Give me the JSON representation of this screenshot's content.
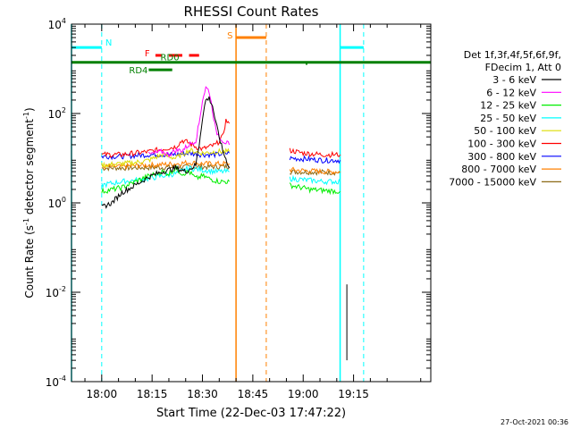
{
  "chart_data": {
    "type": "line",
    "title": "RHESSI Count Rates",
    "xlabel": "Start Time (22-Dec-03 17:47:22)",
    "ylabel_parts": [
      "Count Rate (s",
      "-1",
      " detector segment",
      "-1",
      ")"
    ],
    "y_scale": "log",
    "ylim": [
      0.0001,
      10000
    ],
    "y_ticks": [
      {
        "value": 0.0001,
        "base": "10",
        "exp": "-4"
      },
      {
        "value": 0.01,
        "base": "10",
        "exp": "-2"
      },
      {
        "value": 1,
        "base": "10",
        "exp": "0"
      },
      {
        "value": 100,
        "base": "10",
        "exp": "2"
      },
      {
        "value": 10000,
        "base": "10",
        "exp": "4"
      }
    ],
    "x_range_min": [
      -9,
      98
    ],
    "x_ticks": [
      {
        "label": "18:00",
        "min": 0
      },
      {
        "label": "18:15",
        "min": 15
      },
      {
        "label": "18:30",
        "min": 30
      },
      {
        "label": "18:45",
        "min": 45
      },
      {
        "label": "19:00",
        "min": 60
      },
      {
        "label": "19:15",
        "min": 75
      }
    ],
    "legend": {
      "title_lines": [
        "Det 1f,3f,4f,5f,6f,9f,",
        "FDecim 1, Att 0"
      ],
      "entries": [
        {
          "label": "3 - 6 keV",
          "color": "#000000"
        },
        {
          "label": "6 - 12 keV",
          "color": "#ff00ff"
        },
        {
          "label": "12 - 25 keV",
          "color": "#00ee00"
        },
        {
          "label": "25 - 50 keV",
          "color": "#00ffff"
        },
        {
          "label": "50 - 100 keV",
          "color": "#dddd00"
        },
        {
          "label": "100 - 300 keV",
          "color": "#ff0000"
        },
        {
          "label": "300 - 800 keV",
          "color": "#0000ff"
        },
        {
          "label": "800 - 7000 keV",
          "color": "#ff8000"
        },
        {
          "label": "7000 - 15000 keV",
          "color": "#8b6914"
        }
      ]
    },
    "series": [
      {
        "name": "3 - 6 keV",
        "color": "#000000",
        "segments": [
          [
            [
              0,
              0.8
            ],
            [
              3,
              1.0
            ],
            [
              6,
              1.7
            ],
            [
              10,
              2.5
            ],
            [
              14,
              3.8
            ],
            [
              18,
              5
            ],
            [
              22,
              6
            ],
            [
              25,
              5
            ],
            [
              28,
              7
            ],
            [
              29,
              20
            ],
            [
              30,
              80
            ],
            [
              31,
              200
            ],
            [
              32,
              220
            ],
            [
              33,
              150
            ],
            [
              34,
              60
            ],
            [
              36,
              15
            ],
            [
              38,
              6
            ]
          ],
          [
            [
              73,
              0.0003
            ],
            [
              73,
              0.015
            ]
          ]
        ]
      },
      {
        "name": "6 - 12 keV",
        "color": "#ff00ff",
        "segments": [
          [
            [
              14,
              12
            ],
            [
              18,
              14
            ],
            [
              20,
              12
            ],
            [
              22,
              15
            ],
            [
              24,
              15
            ],
            [
              26,
              20
            ],
            [
              28,
              25
            ],
            [
              29,
              60
            ],
            [
              30,
              200
            ],
            [
              31,
              380
            ],
            [
              32,
              320
            ],
            [
              33,
              120
            ],
            [
              34,
              40
            ],
            [
              36,
              25
            ],
            [
              38,
              20
            ]
          ]
        ]
      },
      {
        "name": "12 - 25 keV",
        "color": "#00ee00",
        "segments": [
          [
            [
              0,
              1.8
            ],
            [
              6,
              2.2
            ],
            [
              10,
              3
            ],
            [
              14,
              4
            ],
            [
              18,
              5
            ],
            [
              20,
              4.5
            ],
            [
              22,
              6
            ],
            [
              24,
              4.5
            ],
            [
              26,
              5
            ],
            [
              28,
              3.5
            ],
            [
              30,
              4
            ],
            [
              32,
              3.5
            ],
            [
              35,
              3
            ],
            [
              38,
              3
            ]
          ],
          [
            [
              56,
              2.5
            ],
            [
              62,
              2.0
            ],
            [
              66,
              1.9
            ],
            [
              71,
              1.8
            ]
          ]
        ]
      },
      {
        "name": "25 - 50 keV",
        "color": "#00ffff",
        "segments": [
          [
            [
              0,
              2.5
            ],
            [
              6,
              3
            ],
            [
              10,
              3.2
            ],
            [
              14,
              3.5
            ],
            [
              18,
              4
            ],
            [
              22,
              4.5
            ],
            [
              26,
              6
            ],
            [
              30,
              5.5
            ],
            [
              34,
              5
            ],
            [
              38,
              5
            ]
          ],
          [
            [
              56,
              3.5
            ],
            [
              62,
              3.2
            ],
            [
              66,
              3.0
            ],
            [
              71,
              3.0
            ]
          ]
        ]
      },
      {
        "name": "50 - 100 keV",
        "color": "#dddd00",
        "segments": [
          [
            [
              0,
              7
            ],
            [
              6,
              7.5
            ],
            [
              10,
              8
            ],
            [
              14,
              9
            ],
            [
              18,
              12
            ],
            [
              22,
              10
            ],
            [
              26,
              15
            ],
            [
              30,
              13
            ],
            [
              34,
              14
            ],
            [
              38,
              14
            ]
          ]
        ]
      },
      {
        "name": "100 - 300 keV",
        "color": "#ff0000",
        "segments": [
          [
            [
              0,
              12
            ],
            [
              6,
              12
            ],
            [
              10,
              13
            ],
            [
              14,
              14
            ],
            [
              18,
              16
            ],
            [
              22,
              18
            ],
            [
              24,
              25
            ],
            [
              26,
              22
            ],
            [
              28,
              18
            ],
            [
              30,
              16
            ],
            [
              32,
              18
            ],
            [
              34,
              20
            ],
            [
              36,
              30
            ],
            [
              37,
              70
            ],
            [
              38,
              60
            ]
          ],
          [
            [
              56,
              15
            ],
            [
              60,
              13
            ],
            [
              66,
              12
            ],
            [
              71,
              12
            ]
          ]
        ]
      },
      {
        "name": "300 - 800 keV",
        "color": "#0000ff",
        "segments": [
          [
            [
              0,
              11
            ],
            [
              6,
              11
            ],
            [
              10,
              11.5
            ],
            [
              14,
              12
            ],
            [
              18,
              12
            ],
            [
              22,
              12
            ],
            [
              26,
              13
            ],
            [
              30,
              12
            ],
            [
              34,
              12
            ],
            [
              38,
              13
            ]
          ],
          [
            [
              56,
              10
            ],
            [
              62,
              9.5
            ],
            [
              66,
              9
            ],
            [
              71,
              9
            ]
          ]
        ]
      },
      {
        "name": "800 - 7000 keV",
        "color": "#ff8000",
        "segments": [
          [
            [
              0,
              6.5
            ],
            [
              6,
              6.5
            ],
            [
              10,
              6.8
            ],
            [
              14,
              7
            ],
            [
              18,
              7.2
            ],
            [
              22,
              7.5
            ],
            [
              26,
              8
            ],
            [
              30,
              7.5
            ],
            [
              34,
              7.5
            ],
            [
              38,
              7.5
            ]
          ],
          [
            [
              56,
              5.5
            ],
            [
              62,
              5.2
            ],
            [
              66,
              5.0
            ],
            [
              71,
              5.0
            ]
          ]
        ]
      },
      {
        "name": "7000 - 15000 keV",
        "color": "#8b6914",
        "segments": [
          [
            [
              0,
              6
            ],
            [
              38,
              6.5
            ]
          ],
          [
            [
              56,
              5
            ],
            [
              71,
              4.8
            ]
          ]
        ]
      }
    ],
    "annotations": {
      "night": {
        "label": "N",
        "color": "#00ffff",
        "y_value": 3000,
        "bars_min": [
          [
            -9,
            0
          ],
          [
            71,
            78
          ]
        ],
        "solid_lines_min": [
          -9,
          71
        ],
        "dashed_lines_min": [
          0,
          78
        ]
      },
      "saa": {
        "label": "S",
        "color": "#ff8000",
        "y_value": 5000,
        "bar_min": [
          40,
          49
        ],
        "solid_line_min": 40,
        "dashed_line_min": 49
      },
      "flare": {
        "label": "F",
        "color": "#ff0000",
        "y_value": 2000,
        "dash_segments_min": [
          [
            16,
            18
          ],
          [
            20,
            24
          ],
          [
            26,
            29
          ]
        ]
      },
      "rd0": {
        "label": "RD0",
        "color": "#008000",
        "y_value": 1400,
        "bar_min": [
          -9,
          98
        ]
      },
      "rd4": {
        "label": "RD4",
        "color": "#008000",
        "y_value": 950,
        "bar_min": [
          14,
          21
        ],
        "dot_min": 61
      }
    },
    "grid": false,
    "legend_placement": "right"
  },
  "footer": {
    "date_stamp": "27-Oct-2021 00:36"
  }
}
